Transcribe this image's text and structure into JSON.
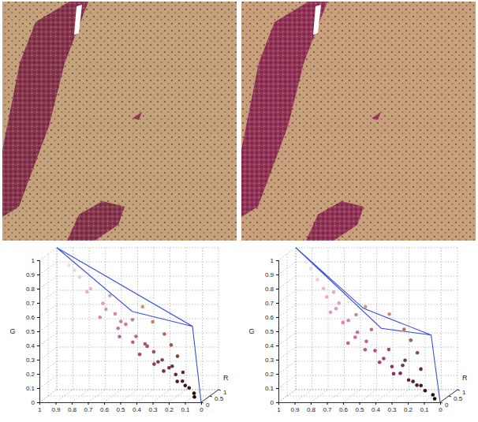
{
  "chart_data": [
    {
      "type": "scatter3d",
      "ylabel": "G",
      "zlabel": "R",
      "grid": true,
      "xlim": [
        1,
        0
      ],
      "xticks": [
        1,
        0.9,
        0.8,
        0.7,
        0.6,
        0.5,
        0.4,
        0.3,
        0.2,
        0.1,
        0
      ],
      "ylim": [
        0,
        1
      ],
      "yticks": [
        0,
        0.1,
        0.2,
        0.3,
        0.4,
        0.5,
        0.6,
        0.7,
        0.8,
        0.9,
        1
      ],
      "zlim": [
        0,
        1
      ],
      "zticks": [
        0,
        0.5,
        1
      ],
      "series": [
        {
          "type": "scatter",
          "x": [
            0.92,
            0.85,
            0.78,
            0.7,
            0.62,
            0.55,
            0.48,
            0.42,
            0.36,
            0.3,
            0.25,
            0.2,
            0.15,
            0.1,
            0.06,
            0.45,
            0.38,
            0.3,
            0.25,
            0.2,
            0.6,
            0.5,
            0.45,
            0.35,
            0.28,
            0.8,
            0.68,
            0.58,
            0.4,
            0.32,
            0.18,
            0.12,
            0.22,
            0.5,
            0.65,
            0.15,
            0.72,
            0.58,
            0.05,
            0.88
          ],
          "values": [
            0.88,
            0.8,
            0.72,
            0.62,
            0.55,
            0.48,
            0.4,
            0.35,
            0.3,
            0.25,
            0.2,
            0.16,
            0.12,
            0.08,
            0.05,
            0.6,
            0.5,
            0.42,
            0.35,
            0.28,
            0.45,
            0.36,
            0.28,
            0.22,
            0.18,
            0.7,
            0.58,
            0.5,
            0.34,
            0.24,
            0.12,
            0.1,
            0.22,
            0.52,
            0.68,
            0.18,
            0.52,
            0.4,
            0.03,
            0.85
          ],
          "z": [
            0.95,
            0.92,
            0.9,
            0.86,
            0.82,
            0.78,
            0.72,
            0.68,
            0.62,
            0.55,
            0.48,
            0.4,
            0.32,
            0.24,
            0.15,
            0.82,
            0.75,
            0.68,
            0.6,
            0.5,
            0.8,
            0.72,
            0.65,
            0.55,
            0.45,
            0.88,
            0.85,
            0.78,
            0.62,
            0.5,
            0.3,
            0.2,
            0.38,
            0.7,
            0.8,
            0.35,
            0.88,
            0.7,
            0.08,
            0.9
          ]
        },
        {
          "type": "line",
          "color": "#3b4fe0",
          "x": [
            1,
            0.12,
            0,
            null,
            1,
            0.5,
            0.12
          ],
          "values": [
            1,
            0.48,
            0,
            null,
            1,
            0.58,
            0.48
          ],
          "z": [
            1,
            0.62,
            0,
            null,
            1,
            0.68,
            0.62
          ]
        }
      ]
    },
    {
      "type": "scatter3d",
      "ylabel": "G",
      "zlabel": "R",
      "grid": true,
      "xlim": [
        1,
        0
      ],
      "xticks": [
        1,
        0.9,
        0.8,
        0.7,
        0.6,
        0.5,
        0.4,
        0.3,
        0.2,
        0.1,
        0
      ],
      "ylim": [
        0,
        1
      ],
      "yticks": [
        0,
        0.1,
        0.2,
        0.3,
        0.4,
        0.5,
        0.6,
        0.7,
        0.8,
        0.9,
        1
      ],
      "zlim": [
        0,
        1
      ],
      "zticks": [
        0,
        0.5,
        1
      ],
      "series": [
        {
          "type": "scatter",
          "x": [
            0.93,
            0.86,
            0.8,
            0.74,
            0.66,
            0.6,
            0.54,
            0.48,
            0.42,
            0.36,
            0.3,
            0.24,
            0.18,
            0.12,
            0.06,
            0.4,
            0.3,
            0.25,
            0.2,
            0.55,
            0.7,
            0.62,
            0.55,
            0.45,
            0.35,
            0.82,
            0.72,
            0.5,
            0.38,
            0.28,
            0.2,
            0.14,
            0.26,
            0.6,
            0.75,
            0.16,
            0.78,
            0.65,
            0.04,
            0.9
          ],
          "values": [
            0.9,
            0.78,
            0.66,
            0.58,
            0.5,
            0.42,
            0.36,
            0.3,
            0.25,
            0.2,
            0.16,
            0.12,
            0.09,
            0.06,
            0.04,
            0.55,
            0.45,
            0.38,
            0.3,
            0.6,
            0.48,
            0.38,
            0.3,
            0.22,
            0.15,
            0.72,
            0.62,
            0.45,
            0.32,
            0.22,
            0.12,
            0.1,
            0.26,
            0.55,
            0.7,
            0.2,
            0.55,
            0.35,
            0.02,
            0.86
          ],
          "z": [
            0.96,
            0.94,
            0.92,
            0.9,
            0.86,
            0.82,
            0.78,
            0.72,
            0.66,
            0.58,
            0.5,
            0.42,
            0.34,
            0.25,
            0.14,
            0.8,
            0.72,
            0.64,
            0.55,
            0.82,
            0.92,
            0.88,
            0.8,
            0.7,
            0.58,
            0.92,
            0.88,
            0.7,
            0.58,
            0.45,
            0.3,
            0.2,
            0.4,
            0.75,
            0.85,
            0.38,
            0.95,
            0.75,
            0.06,
            0.92
          ]
        },
        {
          "type": "line",
          "color": "#3b4fe0",
          "x": [
            1,
            0.45,
            0.12,
            0,
            null,
            1,
            0.55,
            0.12
          ],
          "values": [
            1,
            0.45,
            0.42,
            0,
            null,
            1,
            0.6,
            0.42
          ],
          "z": [
            1,
            0.8,
            0.6,
            0,
            null,
            1,
            0.7,
            0.6
          ]
        }
      ]
    }
  ]
}
